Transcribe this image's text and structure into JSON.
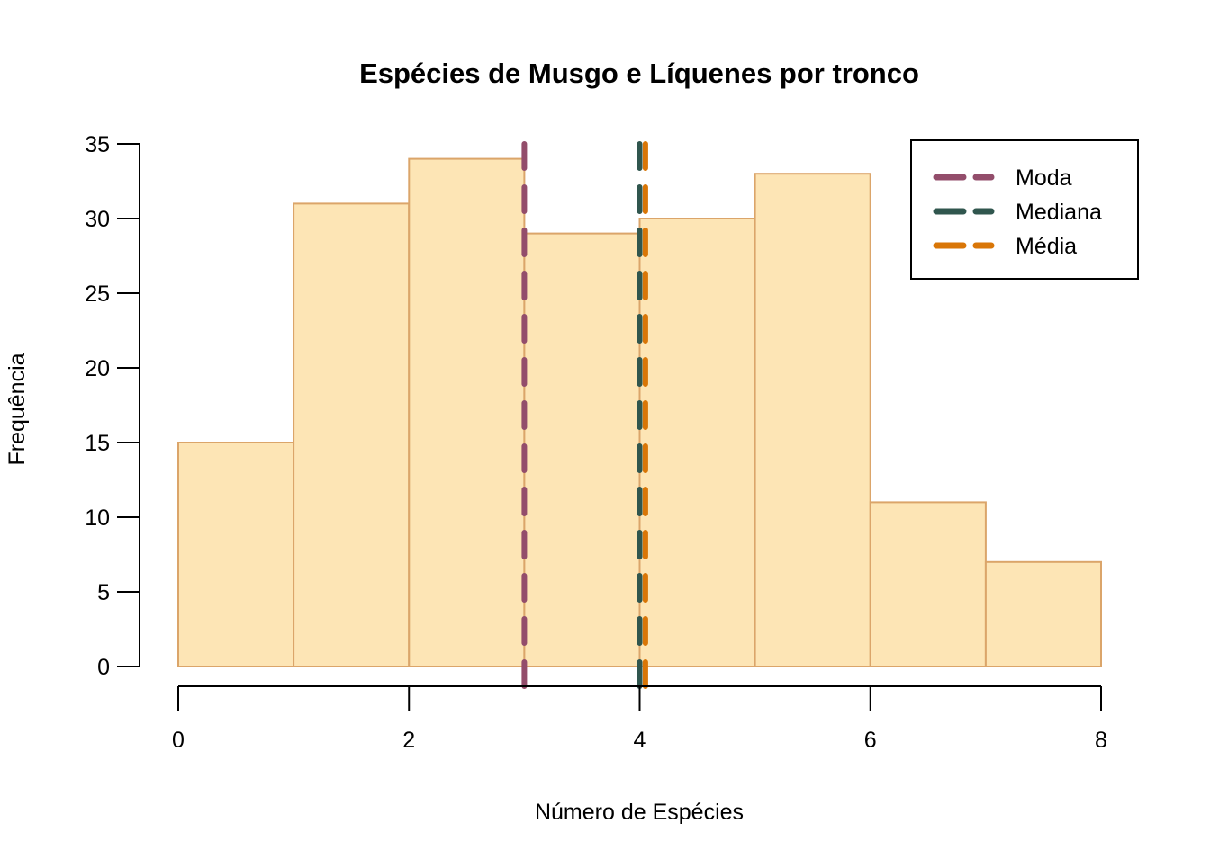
{
  "chart_data": {
    "type": "histogram",
    "title": "Espécies de Musgo e Líquenes por tronco",
    "xlabel": "Número de Espécies",
    "ylabel": "Frequência",
    "bin_edges": [
      0,
      1,
      2,
      3,
      4,
      5,
      6,
      7,
      8
    ],
    "counts": [
      15,
      31,
      34,
      29,
      30,
      33,
      11,
      7
    ],
    "x_ticks": [
      0,
      2,
      4,
      6,
      8
    ],
    "y_ticks": [
      0,
      5,
      10,
      15,
      20,
      25,
      30,
      35
    ],
    "xlim": [
      0,
      8
    ],
    "ylim": [
      0,
      35
    ],
    "grid": "off",
    "bar_fill_color": "#FDE5B5",
    "bar_border_color": "#DBA56A",
    "stat_lines": [
      {
        "label": "Moda",
        "value": 3,
        "color": "#934D6B"
      },
      {
        "label": "Mediana",
        "value": 4,
        "color": "#30564E"
      },
      {
        "label": "Média",
        "value": 4.05,
        "color": "#D97607"
      }
    ],
    "legend": {
      "position": "top-right",
      "line_style": "dashed"
    }
  }
}
